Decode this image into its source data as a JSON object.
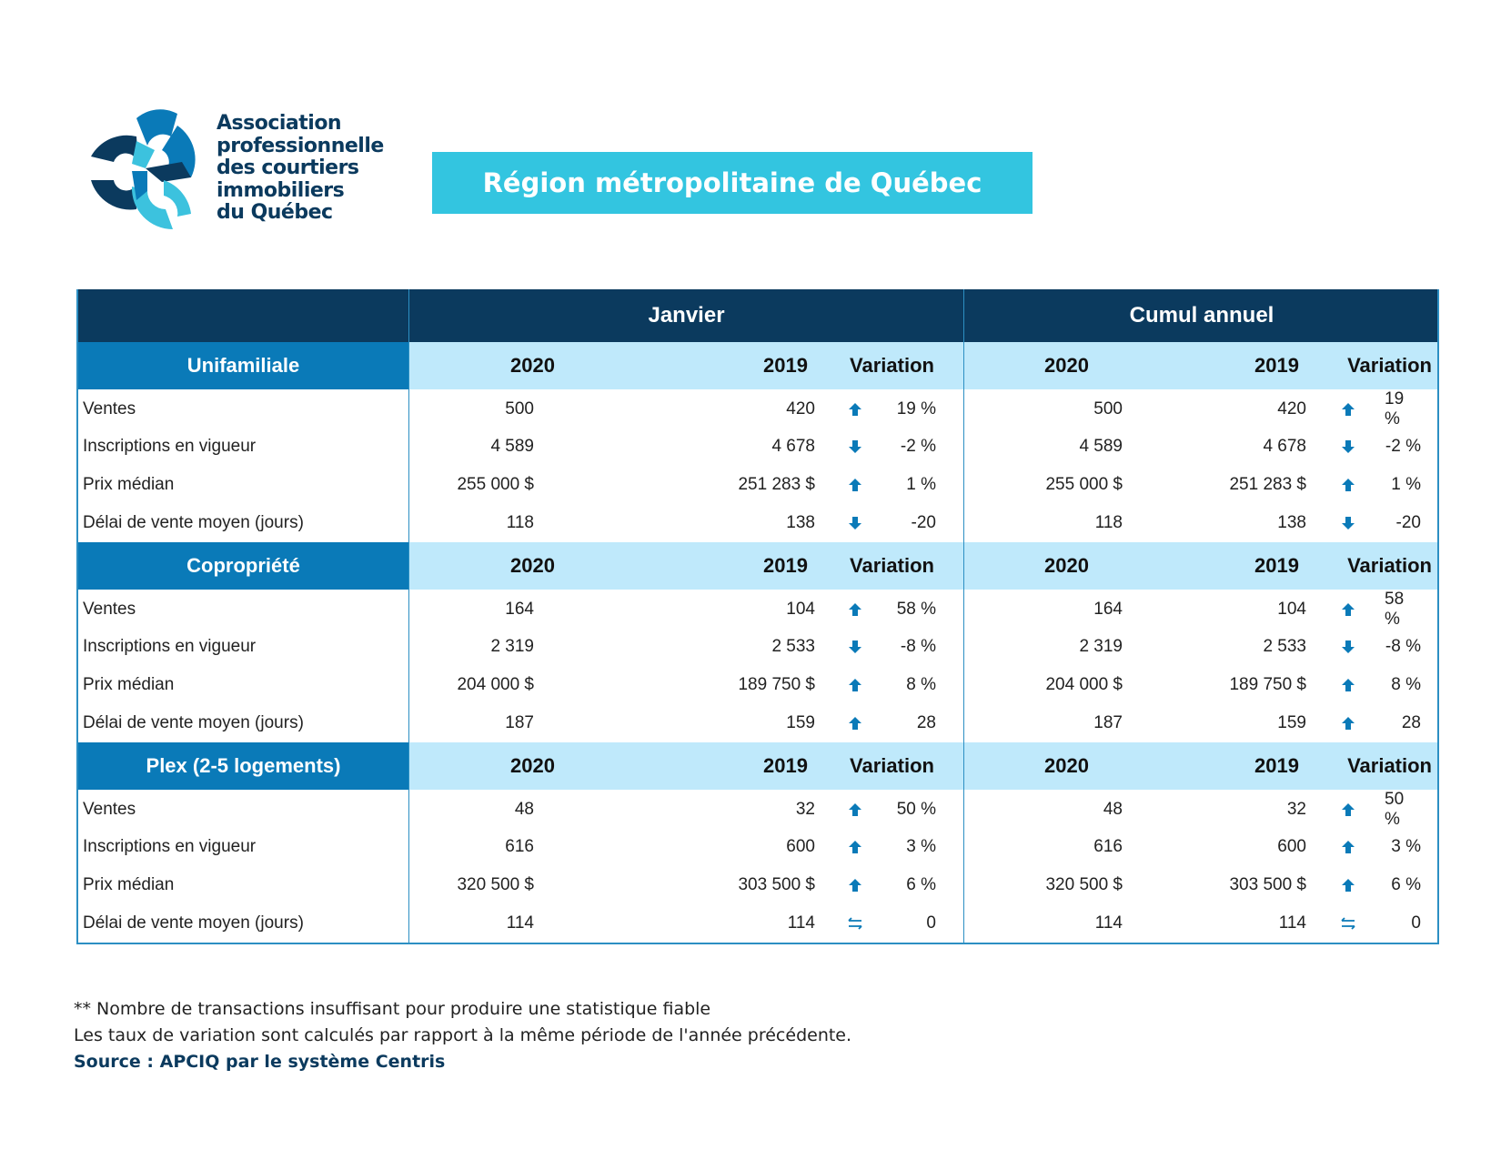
{
  "logo": {
    "lines": [
      "Association",
      "professionnelle",
      "des courtiers",
      "immobiliers",
      "du Québec"
    ]
  },
  "banner": {
    "title": "Région métropolitaine de Québec"
  },
  "table": {
    "period_headers": [
      "Janvier",
      "Cumul annuel"
    ],
    "col_headers": {
      "y2020": "2020",
      "y2019": "2019",
      "variation": "Variation"
    },
    "sections": [
      {
        "name": "Unifamiliale",
        "rows": [
          {
            "label": "Ventes",
            "jan": [
              "500",
              "420",
              "up",
              "19 %"
            ],
            "cumul": [
              "500",
              "420",
              "up",
              "19 %"
            ]
          },
          {
            "label": "Inscriptions en vigueur",
            "jan": [
              "4 589",
              "4 678",
              "down",
              "-2 %"
            ],
            "cumul": [
              "4 589",
              "4 678",
              "down",
              "-2 %"
            ]
          },
          {
            "label": "Prix médian",
            "jan": [
              "255 000 $",
              "251 283 $",
              "up",
              "1 %"
            ],
            "cumul": [
              "255 000 $",
              "251 283 $",
              "up",
              "1 %"
            ]
          },
          {
            "label": "Délai de vente moyen (jours)",
            "jan": [
              "118",
              "138",
              "down",
              "-20"
            ],
            "cumul": [
              "118",
              "138",
              "down",
              "-20"
            ]
          }
        ]
      },
      {
        "name": "Copropriété",
        "rows": [
          {
            "label": "Ventes",
            "jan": [
              "164",
              "104",
              "up",
              "58 %"
            ],
            "cumul": [
              "164",
              "104",
              "up",
              "58 %"
            ]
          },
          {
            "label": "Inscriptions en vigueur",
            "jan": [
              "2 319",
              "2 533",
              "down",
              "-8 %"
            ],
            "cumul": [
              "2 319",
              "2 533",
              "down",
              "-8 %"
            ]
          },
          {
            "label": "Prix médian",
            "jan": [
              "204 000 $",
              "189 750 $",
              "up",
              "8 %"
            ],
            "cumul": [
              "204 000 $",
              "189 750 $",
              "up",
              "8 %"
            ]
          },
          {
            "label": "Délai de vente moyen (jours)",
            "jan": [
              "187",
              "159",
              "up",
              "28"
            ],
            "cumul": [
              "187",
              "159",
              "up",
              "28"
            ]
          }
        ]
      },
      {
        "name": "Plex (2-5 logements)",
        "rows": [
          {
            "label": "Ventes",
            "jan": [
              "48",
              "32",
              "up",
              "50 %"
            ],
            "cumul": [
              "48",
              "32",
              "up",
              "50 %"
            ]
          },
          {
            "label": "Inscriptions en vigueur",
            "jan": [
              "616",
              "600",
              "up",
              "3 %"
            ],
            "cumul": [
              "616",
              "600",
              "up",
              "3 %"
            ]
          },
          {
            "label": "Prix médian",
            "jan": [
              "320 500 $",
              "303 500 $",
              "up",
              "6 %"
            ],
            "cumul": [
              "320 500 $",
              "303 500 $",
              "up",
              "6 %"
            ]
          },
          {
            "label": "Délai de vente moyen (jours)",
            "jan": [
              "114",
              "114",
              "stable",
              "0"
            ],
            "cumul": [
              "114",
              "114",
              "stable",
              "0"
            ]
          }
        ]
      }
    ]
  },
  "icons": {
    "up": "arrow-up-icon",
    "down": "arrow-down-icon",
    "stable": "stable-arrows-icon"
  },
  "colors": {
    "navy": "#0b3a5e",
    "section": "#0a7ab8",
    "light": "#bfe9fb",
    "banner": "#33c5e0"
  },
  "footnotes": {
    "note1": "** Nombre de transactions insuffisant pour produire une statistique fiable",
    "note2": "Les taux de variation sont calculés par rapport à la même période de l'année précédente.",
    "source": "Source : APCIQ par le système Centris"
  }
}
